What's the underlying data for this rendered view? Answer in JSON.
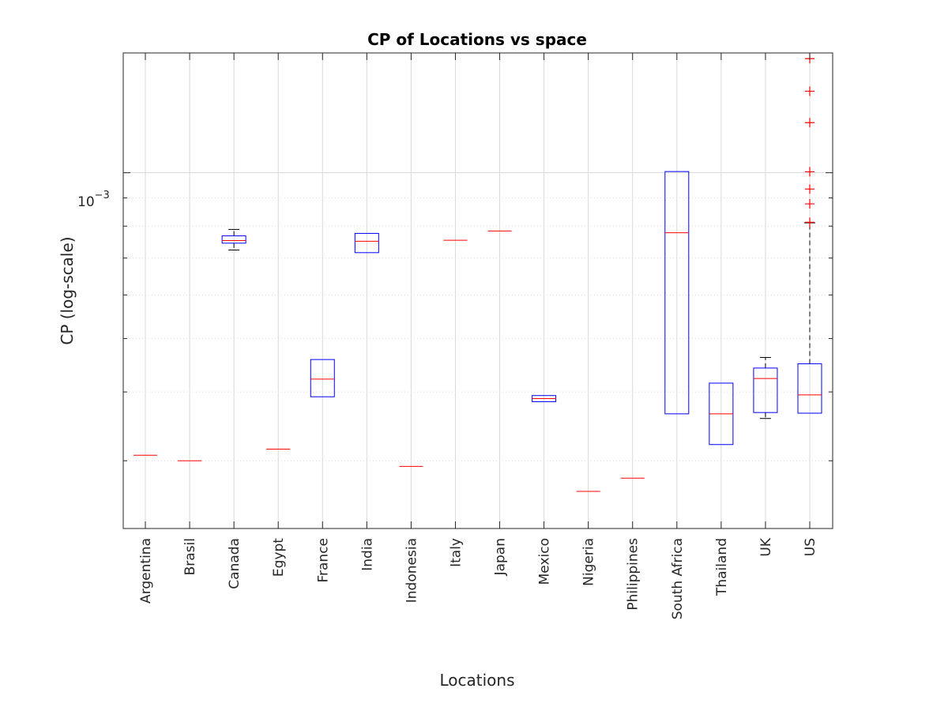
{
  "chart_data": {
    "type": "boxplot",
    "title": "CP of Locations vs space",
    "xlabel": "Locations",
    "ylabel": "CP (log-scale)",
    "yscale": "log",
    "ylim": [
      0.000226,
      0.00165
    ],
    "y_tick_label": {
      "value": 0.001,
      "base": "10",
      "exponent": "−3"
    },
    "grid": true,
    "colors": {
      "box": "#0000ff",
      "median": "#ff0000",
      "whisker": "#000000",
      "outlier": "#ff0000"
    },
    "categories": [
      "Argentina",
      "Brasil",
      "Canada",
      "Egypt",
      "France",
      "India",
      "Indonesia",
      "Italy",
      "Japan",
      "Mexico",
      "Nigeria",
      "Philippines",
      "South Africa",
      "Thailand",
      "UK",
      "US"
    ],
    "series": [
      {
        "median": 0.000307,
        "q1": 0.000307,
        "q3": 0.000307,
        "whisker_low": 0.000307,
        "whisker_high": 0.000307,
        "outliers": []
      },
      {
        "median": 0.0003,
        "q1": 0.0003,
        "q3": 0.0003,
        "whisker_low": 0.0003,
        "whisker_high": 0.0003,
        "outliers": []
      },
      {
        "median": 0.000753,
        "q1": 0.000745,
        "q3": 0.000768,
        "whisker_low": 0.000724,
        "whisker_high": 0.000789,
        "outliers": []
      },
      {
        "median": 0.000315,
        "q1": 0.000315,
        "q3": 0.000315,
        "whisker_low": 0.000315,
        "whisker_high": 0.000315,
        "outliers": []
      },
      {
        "median": 0.000422,
        "q1": 0.000392,
        "q3": 0.000458,
        "whisker_low": 0.000392,
        "whisker_high": 0.000458,
        "outliers": []
      },
      {
        "median": 0.000751,
        "q1": 0.000716,
        "q3": 0.000776,
        "whisker_low": 0.000716,
        "whisker_high": 0.000776,
        "outliers": []
      },
      {
        "median": 0.000293,
        "q1": 0.000293,
        "q3": 0.000293,
        "whisker_low": 0.000293,
        "whisker_high": 0.000293,
        "outliers": []
      },
      {
        "median": 0.000754,
        "q1": 0.000754,
        "q3": 0.000754,
        "whisker_low": 0.000754,
        "whisker_high": 0.000754,
        "outliers": []
      },
      {
        "median": 0.000784,
        "q1": 0.000784,
        "q3": 0.000784,
        "whisker_low": 0.000784,
        "whisker_high": 0.000784,
        "outliers": []
      },
      {
        "median": 0.000389,
        "q1": 0.000384,
        "q3": 0.000394,
        "whisker_low": 0.000384,
        "whisker_high": 0.000394,
        "outliers": []
      },
      {
        "median": 0.000264,
        "q1": 0.000264,
        "q3": 0.000264,
        "whisker_low": 0.000264,
        "whisker_high": 0.000264,
        "outliers": []
      },
      {
        "median": 0.000279,
        "q1": 0.000279,
        "q3": 0.000279,
        "whisker_low": 0.000279,
        "whisker_high": 0.000279,
        "outliers": []
      },
      {
        "median": 0.000778,
        "q1": 0.000365,
        "q3": 0.001005,
        "whisker_low": 0.000365,
        "whisker_high": 0.001005,
        "outliers": []
      },
      {
        "median": 0.000365,
        "q1": 0.000321,
        "q3": 0.000415,
        "whisker_low": 0.000321,
        "whisker_high": 0.000415,
        "outliers": []
      },
      {
        "median": 0.000423,
        "q1": 0.000367,
        "q3": 0.000442,
        "whisker_low": 0.000358,
        "whisker_high": 0.000462,
        "outliers": []
      },
      {
        "median": 0.000395,
        "q1": 0.000366,
        "q3": 0.00045,
        "whisker_low": 0.000366,
        "whisker_high": 0.000811,
        "outliers": [
          0.000813,
          0.000878,
          0.000934,
          0.001004,
          0.001233,
          0.001406,
          0.001611
        ]
      }
    ]
  }
}
